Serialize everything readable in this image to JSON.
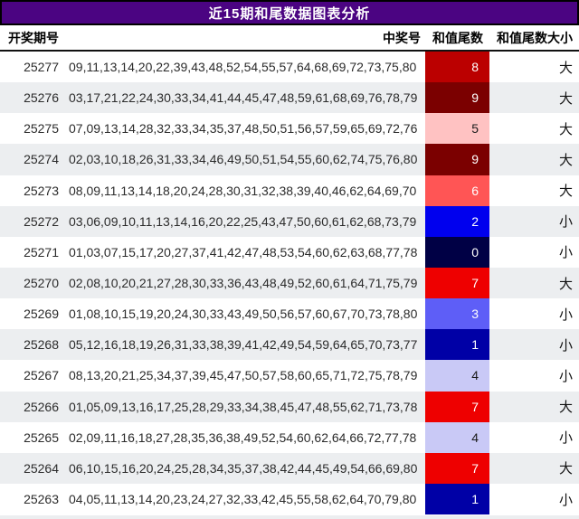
{
  "title": "近15期和尾数据图表分析",
  "header": {
    "period": "开奖期号",
    "numbers": "中奖号",
    "tail": "和值尾数",
    "size": "和值尾数大小"
  },
  "chart_data": {
    "type": "table",
    "title": "近15期和尾数据图表分析",
    "columns": [
      "开奖期号",
      "中奖号",
      "和值尾数",
      "和值尾数大小"
    ],
    "rows": [
      {
        "period": "25277",
        "numbers": "09,11,13,14,20,22,39,43,48,52,54,55,57,64,68,69,72,73,75,80",
        "tail": "8",
        "size": "大"
      },
      {
        "period": "25276",
        "numbers": "03,17,21,22,24,30,33,34,41,44,45,47,48,59,61,68,69,76,78,79",
        "tail": "9",
        "size": "大"
      },
      {
        "period": "25275",
        "numbers": "07,09,13,14,28,32,33,34,35,37,48,50,51,56,57,59,65,69,72,76",
        "tail": "5",
        "size": "大"
      },
      {
        "period": "25274",
        "numbers": "02,03,10,18,26,31,33,34,46,49,50,51,54,55,60,62,74,75,76,80",
        "tail": "9",
        "size": "大"
      },
      {
        "period": "25273",
        "numbers": "08,09,11,13,14,18,20,24,28,30,31,32,38,39,40,46,62,64,69,70",
        "tail": "6",
        "size": "大"
      },
      {
        "period": "25272",
        "numbers": "03,06,09,10,11,13,14,16,20,22,25,43,47,50,60,61,62,68,73,79",
        "tail": "2",
        "size": "小"
      },
      {
        "period": "25271",
        "numbers": "01,03,07,15,17,20,27,37,41,42,47,48,53,54,60,62,63,68,77,78",
        "tail": "0",
        "size": "小"
      },
      {
        "period": "25270",
        "numbers": "02,08,10,20,21,27,28,30,33,36,43,48,49,52,60,61,64,71,75,79",
        "tail": "7",
        "size": "大"
      },
      {
        "period": "25269",
        "numbers": "01,08,10,15,19,20,24,30,33,43,49,50,56,57,60,67,70,73,78,80",
        "tail": "3",
        "size": "小"
      },
      {
        "period": "25268",
        "numbers": "05,12,16,18,19,26,31,33,38,39,41,42,49,54,59,64,65,70,73,77",
        "tail": "1",
        "size": "小"
      },
      {
        "period": "25267",
        "numbers": "08,13,20,21,25,34,37,39,45,47,50,57,58,60,65,71,72,75,78,79",
        "tail": "4",
        "size": "小"
      },
      {
        "period": "25266",
        "numbers": "01,05,09,13,16,17,25,28,29,33,34,38,45,47,48,55,62,71,73,78",
        "tail": "7",
        "size": "大"
      },
      {
        "period": "25265",
        "numbers": "02,09,11,16,18,27,28,35,36,38,49,52,54,60,62,64,66,72,77,78",
        "tail": "4",
        "size": "小"
      },
      {
        "period": "25264",
        "numbers": "06,10,15,16,20,24,25,28,34,35,37,38,42,44,45,49,54,66,69,80",
        "tail": "7",
        "size": "大"
      },
      {
        "period": "25263",
        "numbers": "04,05,11,13,14,20,23,24,27,32,33,42,45,55,58,62,64,70,79,80",
        "tail": "1",
        "size": "小"
      }
    ],
    "tail_values": [
      8,
      9,
      5,
      9,
      6,
      2,
      0,
      7,
      3,
      1,
      4,
      7,
      4,
      7,
      1
    ],
    "size_values": [
      "大",
      "大",
      "大",
      "大",
      "大",
      "小",
      "小",
      "大",
      "小",
      "小",
      "小",
      "大",
      "小",
      "大",
      "小"
    ],
    "legend": "和值尾数 cell heat-colored: blue scale for low tails (0-4, 小), red scale for high tails (5-9, 大)"
  },
  "colors": {
    "title_bg": "#4B0482",
    "title_text": "#FFFFFF",
    "stripe": "#ECEEF0",
    "row_text": "#2B2B2B",
    "tail_colors": {
      "0": "#000045",
      "1": "#0000A6",
      "2": "#0000EE",
      "3": "#5E5EF7",
      "4": "#C9C9F6",
      "5": "#FFC2C2",
      "6": "#FF5555",
      "7": "#EE0000",
      "8": "#BB0000",
      "9": "#7B0000"
    },
    "tail_dark_text": [
      "4",
      "5"
    ]
  }
}
